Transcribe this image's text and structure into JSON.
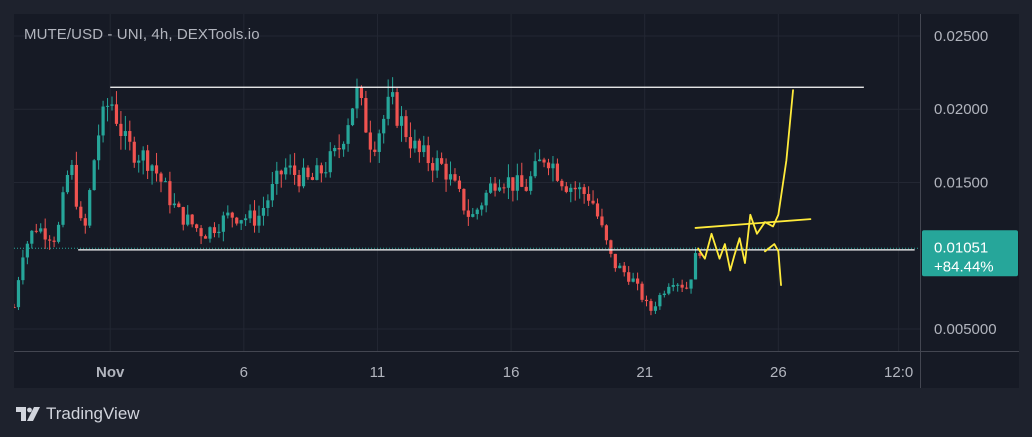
{
  "title": "MUTE/USD - UNI, 4h, DEXTools.io",
  "brand": {
    "name": "TradingView",
    "icon": "tradingview-logo-icon"
  },
  "colors": {
    "background": "#1e222d",
    "pane": "#161a25",
    "grid": "#232733",
    "up": "#26a69a",
    "down": "#ef5350",
    "annotation": "#ffeb3b",
    "level_line": "#ffffff",
    "price_badge": "#26a69a"
  },
  "chart_data": {
    "type": "candlestick",
    "title": "MUTE/USD - UNI, 4h, DEXTools.io",
    "x_ticks": [
      {
        "label": "Nov",
        "day": 1,
        "bold": true
      },
      {
        "label": "6",
        "day": 6
      },
      {
        "label": "11",
        "day": 11
      },
      {
        "label": "16",
        "day": 16
      },
      {
        "label": "21",
        "day": 21
      },
      {
        "label": "26",
        "day": 26
      },
      {
        "label": "12:0",
        "day": 30.5
      }
    ],
    "y_ticks": [
      "0.02500",
      "0.02000",
      "0.01500",
      "0.01051",
      "0.005000"
    ],
    "y_tick_values": [
      0.025,
      0.02,
      0.015,
      0.005
    ],
    "ylim": [
      0.0035,
      0.0265
    ],
    "x_range_days": [
      -2.6,
      31.3
    ],
    "current_price": {
      "value": "0.01051",
      "change": "+84.44%",
      "numeric": 0.01051
    },
    "horizontal_levels": [
      {
        "name": "resistance",
        "value": 0.0215,
        "from_day": 1.0,
        "to_day": 29.2
      },
      {
        "name": "support",
        "value": 0.0104,
        "from_day": -0.2,
        "to_day": 31.1
      }
    ],
    "anchors": [
      {
        "day": -2.6,
        "price": 0.0065
      },
      {
        "day": -2.3,
        "price": 0.0102
      },
      {
        "day": -1.8,
        "price": 0.012
      },
      {
        "day": -1.0,
        "price": 0.0112
      },
      {
        "day": -0.5,
        "price": 0.0165
      },
      {
        "day": 0.0,
        "price": 0.011
      },
      {
        "day": 0.5,
        "price": 0.018
      },
      {
        "day": 1.0,
        "price": 0.0208
      },
      {
        "day": 1.6,
        "price": 0.0175
      },
      {
        "day": 2.5,
        "price": 0.0165
      },
      {
        "day": 3.5,
        "price": 0.013
      },
      {
        "day": 4.5,
        "price": 0.0115
      },
      {
        "day": 5.5,
        "price": 0.0128
      },
      {
        "day": 6.5,
        "price": 0.0125
      },
      {
        "day": 7.5,
        "price": 0.016
      },
      {
        "day": 8.5,
        "price": 0.015
      },
      {
        "day": 9.5,
        "price": 0.017
      },
      {
        "day": 10.2,
        "price": 0.0212
      },
      {
        "day": 10.8,
        "price": 0.0175
      },
      {
        "day": 11.5,
        "price": 0.0205
      },
      {
        "day": 12.5,
        "price": 0.017
      },
      {
        "day": 13.5,
        "price": 0.016
      },
      {
        "day": 14.5,
        "price": 0.0125
      },
      {
        "day": 15.5,
        "price": 0.0155
      },
      {
        "day": 16.5,
        "price": 0.0145
      },
      {
        "day": 17.3,
        "price": 0.017
      },
      {
        "day": 18.0,
        "price": 0.015
      },
      {
        "day": 19.0,
        "price": 0.014
      },
      {
        "day": 19.8,
        "price": 0.0095
      },
      {
        "day": 20.5,
        "price": 0.0085
      },
      {
        "day": 21.2,
        "price": 0.0062
      },
      {
        "day": 22.0,
        "price": 0.0085
      },
      {
        "day": 22.6,
        "price": 0.0078
      },
      {
        "day": 23.0,
        "price": 0.0105
      }
    ],
    "annotation_path": [
      {
        "day": 23.0,
        "price": 0.0105
      },
      {
        "day": 23.25,
        "price": 0.0098
      },
      {
        "day": 23.5,
        "price": 0.0115
      },
      {
        "day": 23.8,
        "price": 0.0098
      },
      {
        "day": 24.0,
        "price": 0.0108
      },
      {
        "day": 24.2,
        "price": 0.009
      },
      {
        "day": 24.35,
        "price": 0.01
      },
      {
        "day": 24.55,
        "price": 0.0112
      },
      {
        "day": 24.75,
        "price": 0.0095
      },
      {
        "day": 24.95,
        "price": 0.0128
      },
      {
        "day": 25.2,
        "price": 0.0115
      },
      {
        "day": 25.5,
        "price": 0.0123
      },
      {
        "day": 25.8,
        "price": 0.012
      },
      {
        "day": 26.0,
        "price": 0.0128
      },
      {
        "day": 26.3,
        "price": 0.0165
      },
      {
        "day": 26.55,
        "price": 0.0213
      }
    ],
    "annotation_breakout_line": [
      {
        "day": 22.9,
        "price": 0.0119
      },
      {
        "day": 27.2,
        "price": 0.0125
      }
    ],
    "annotation_side_path": [
      {
        "day": 25.5,
        "price": 0.0103
      },
      {
        "day": 25.85,
        "price": 0.0108
      },
      {
        "day": 26.0,
        "price": 0.0103
      },
      {
        "day": 26.1,
        "price": 0.008
      }
    ]
  }
}
